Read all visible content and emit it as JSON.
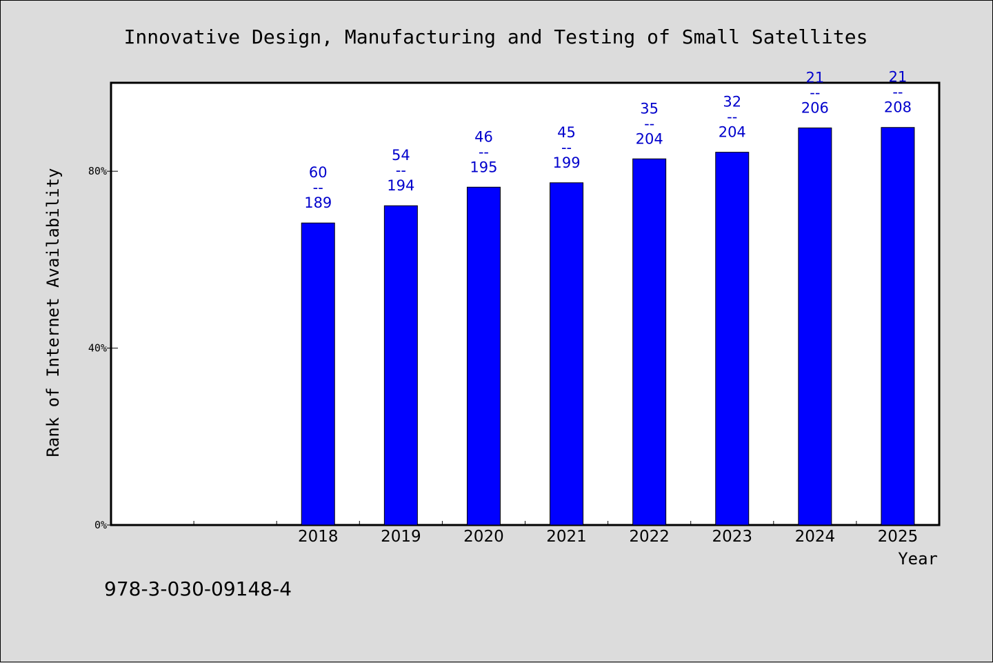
{
  "chart_data": {
    "type": "bar",
    "title": "Innovative Design, Manufacturing and Testing of Small Satellites",
    "xlabel": "Year",
    "ylabel": "Rank of Internet Availability",
    "ylim": [
      0,
      100
    ],
    "y_ticks": [
      0,
      40,
      80
    ],
    "y_tick_labels": [
      "0%",
      "40%",
      "80%"
    ],
    "categories": [
      "2018",
      "2019",
      "2020",
      "2021",
      "2022",
      "2023",
      "2024",
      "2025"
    ],
    "series": [
      {
        "values": [
          68.3,
          72.2,
          76.4,
          77.4,
          82.8,
          84.3,
          89.8,
          89.9
        ],
        "labels": [
          [
            "60",
            "--",
            "189"
          ],
          [
            "54",
            "--",
            "194"
          ],
          [
            "46",
            "--",
            "195"
          ],
          [
            "45",
            "--",
            "199"
          ],
          [
            "35",
            "--",
            "204"
          ],
          [
            "32",
            "--",
            "204"
          ],
          [
            "21",
            "--",
            "206"
          ],
          [
            "21",
            "--",
            "208"
          ]
        ]
      }
    ],
    "grid": false,
    "bar_color": "#0000ff",
    "label_color": "#0000cc"
  },
  "footer": {
    "isbn": "978-3-030-09148-4"
  }
}
